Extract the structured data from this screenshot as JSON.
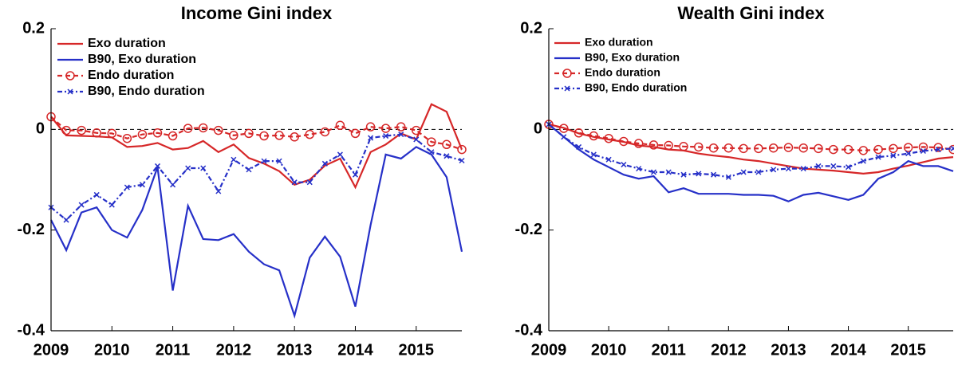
{
  "chart_data": [
    {
      "type": "line",
      "title": "Income Gini index",
      "x": [
        2009,
        2009.25,
        2009.5,
        2009.75,
        2010,
        2010.25,
        2010.5,
        2010.75,
        2011,
        2011.25,
        2011.5,
        2011.75,
        2012,
        2012.25,
        2012.5,
        2012.75,
        2013,
        2013.25,
        2013.5,
        2013.75,
        2014,
        2014.25,
        2014.5,
        2014.75,
        2015,
        2015.25,
        2015.5,
        2015.75
      ],
      "xlim": [
        2009,
        2015.75
      ],
      "xticks": [
        2009,
        2010,
        2011,
        2012,
        2013,
        2014,
        2015
      ],
      "ylim": [
        -0.4,
        0.2
      ],
      "yticks": [
        0.2,
        0,
        -0.2,
        -0.4
      ],
      "reference_line": 0,
      "legend": "northwest",
      "series": [
        {
          "name": "Exo duration",
          "color": "#d62728",
          "dash": "solid",
          "marker": "none",
          "values": [
            0.025,
            -0.012,
            -0.013,
            -0.014,
            -0.016,
            -0.035,
            -0.033,
            -0.027,
            -0.04,
            -0.037,
            -0.023,
            -0.045,
            -0.03,
            -0.057,
            -0.068,
            -0.083,
            -0.11,
            -0.1,
            -0.072,
            -0.058,
            -0.115,
            -0.045,
            -0.03,
            -0.008,
            -0.02,
            0.05,
            0.035,
            -0.04
          ]
        },
        {
          "name": "B90, Exo duration",
          "color": "#2630c8",
          "dash": "solid",
          "marker": "none",
          "values": [
            -0.18,
            -0.24,
            -0.165,
            -0.155,
            -0.2,
            -0.215,
            -0.16,
            -0.075,
            -0.32,
            -0.152,
            -0.218,
            -0.22,
            -0.208,
            -0.243,
            -0.268,
            -0.28,
            -0.37,
            -0.255,
            -0.213,
            -0.253,
            -0.352,
            -0.19,
            -0.05,
            -0.058,
            -0.035,
            -0.05,
            -0.095,
            -0.243
          ]
        },
        {
          "name": "Endo duration",
          "color": "#d62728",
          "dash": "dashed",
          "marker": "o",
          "values": [
            0.025,
            -0.002,
            -0.002,
            -0.007,
            -0.008,
            -0.018,
            -0.01,
            -0.007,
            -0.013,
            0.002,
            0.003,
            -0.002,
            -0.012,
            -0.008,
            -0.013,
            -0.012,
            -0.015,
            -0.01,
            -0.005,
            0.008,
            -0.008,
            0.005,
            0.002,
            0.005,
            -0.002,
            -0.025,
            -0.03,
            -0.04
          ]
        },
        {
          "name": "B90, Endo duration",
          "color": "#2630c8",
          "dash": "dashdot",
          "marker": "x",
          "values": [
            -0.155,
            -0.18,
            -0.15,
            -0.13,
            -0.15,
            -0.115,
            -0.11,
            -0.073,
            -0.11,
            -0.077,
            -0.077,
            -0.123,
            -0.06,
            -0.08,
            -0.063,
            -0.063,
            -0.105,
            -0.105,
            -0.068,
            -0.05,
            -0.09,
            -0.017,
            -0.013,
            -0.01,
            -0.02,
            -0.045,
            -0.053,
            -0.062
          ]
        }
      ]
    },
    {
      "type": "line",
      "title": "Wealth Gini index",
      "x": [
        2009,
        2009.25,
        2009.5,
        2009.75,
        2010,
        2010.25,
        2010.5,
        2010.75,
        2011,
        2011.25,
        2011.5,
        2011.75,
        2012,
        2012.25,
        2012.5,
        2012.75,
        2013,
        2013.25,
        2013.5,
        2013.75,
        2014,
        2014.25,
        2014.5,
        2014.75,
        2015,
        2015.25,
        2015.5,
        2015.75
      ],
      "xlim": [
        2009,
        2015.75
      ],
      "xticks": [
        2009,
        2010,
        2011,
        2012,
        2013,
        2014,
        2015
      ],
      "ylim": [
        -0.4,
        0.2
      ],
      "yticks": [
        0.2,
        0,
        -0.2,
        -0.4
      ],
      "reference_line": 0,
      "legend": "northwest",
      "series": [
        {
          "name": "Exo duration",
          "color": "#d62728",
          "dash": "solid",
          "marker": "none",
          "values": [
            0.01,
            0.003,
            -0.008,
            -0.015,
            -0.02,
            -0.025,
            -0.032,
            -0.035,
            -0.04,
            -0.042,
            -0.048,
            -0.052,
            -0.055,
            -0.06,
            -0.063,
            -0.068,
            -0.073,
            -0.078,
            -0.08,
            -0.082,
            -0.085,
            -0.088,
            -0.085,
            -0.078,
            -0.072,
            -0.065,
            -0.058,
            -0.055
          ]
        },
        {
          "name": "B90, Exo duration",
          "color": "#2630c8",
          "dash": "solid",
          "marker": "none",
          "values": [
            0.01,
            -0.015,
            -0.04,
            -0.06,
            -0.075,
            -0.09,
            -0.098,
            -0.093,
            -0.125,
            -0.117,
            -0.128,
            -0.128,
            -0.128,
            -0.13,
            -0.13,
            -0.132,
            -0.143,
            -0.13,
            -0.126,
            -0.133,
            -0.14,
            -0.13,
            -0.098,
            -0.085,
            -0.063,
            -0.073,
            -0.073,
            -0.083
          ]
        },
        {
          "name": "Endo duration",
          "color": "#d62728",
          "dash": "dashed",
          "marker": "o",
          "values": [
            0.01,
            0.002,
            -0.007,
            -0.013,
            -0.018,
            -0.024,
            -0.028,
            -0.031,
            -0.032,
            -0.034,
            -0.035,
            -0.037,
            -0.037,
            -0.038,
            -0.038,
            -0.037,
            -0.036,
            -0.037,
            -0.038,
            -0.04,
            -0.04,
            -0.042,
            -0.04,
            -0.038,
            -0.036,
            -0.035,
            -0.036,
            -0.04
          ]
        },
        {
          "name": "B90, Endo duration",
          "color": "#2630c8",
          "dash": "dashdot",
          "marker": "x",
          "values": [
            0.01,
            -0.015,
            -0.035,
            -0.05,
            -0.06,
            -0.07,
            -0.078,
            -0.085,
            -0.085,
            -0.09,
            -0.088,
            -0.09,
            -0.095,
            -0.085,
            -0.085,
            -0.08,
            -0.078,
            -0.078,
            -0.073,
            -0.073,
            -0.075,
            -0.063,
            -0.055,
            -0.052,
            -0.048,
            -0.043,
            -0.04,
            -0.038
          ]
        }
      ]
    }
  ]
}
